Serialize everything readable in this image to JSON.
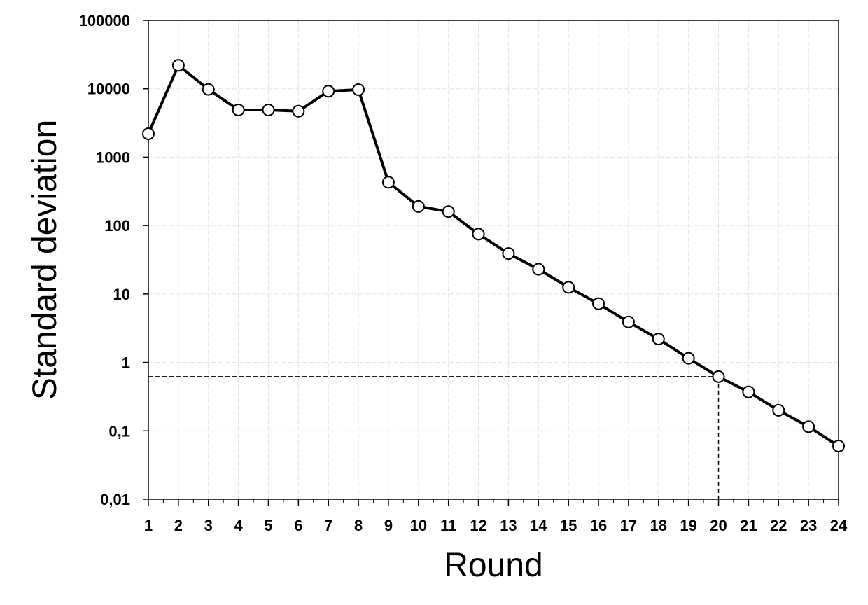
{
  "chart_data": {
    "type": "line",
    "title": "",
    "xlabel": "Round",
    "ylabel": "Standard deviation",
    "yscale": "log",
    "ylim": [
      0.01,
      100000
    ],
    "xlim": [
      1,
      24
    ],
    "grid": true,
    "x": [
      1,
      2,
      3,
      4,
      5,
      6,
      7,
      8,
      9,
      10,
      11,
      12,
      13,
      14,
      15,
      16,
      17,
      18,
      19,
      20,
      21,
      22,
      23,
      24
    ],
    "xtick_labels": [
      "1",
      "2",
      "3",
      "4",
      "5",
      "6",
      "7",
      "8",
      "9",
      "10",
      "11",
      "12",
      "13",
      "14",
      "15",
      "16",
      "17",
      "18",
      "19",
      "20",
      "21",
      "22",
      "23",
      "24"
    ],
    "yticks": [
      0.01,
      0.1,
      1,
      10,
      100,
      1000,
      10000,
      100000
    ],
    "ytick_labels": [
      "0,01",
      "0,1",
      "1",
      "10",
      "100",
      "1000",
      "10000",
      "100000"
    ],
    "series": [
      {
        "values": [
          2200,
          22000,
          9800,
          4900,
          4900,
          4700,
          9200,
          9700,
          430,
          190,
          160,
          75,
          39,
          23,
          12.5,
          7.2,
          3.9,
          2.2,
          1.15,
          0.62,
          0.37,
          0.2,
          0.115,
          0.06
        ],
        "line_color": "#000000",
        "marker": "open-circle"
      }
    ],
    "annotations": [
      {
        "type": "dashed-reference",
        "x": 20,
        "y": 0.62
      }
    ]
  }
}
